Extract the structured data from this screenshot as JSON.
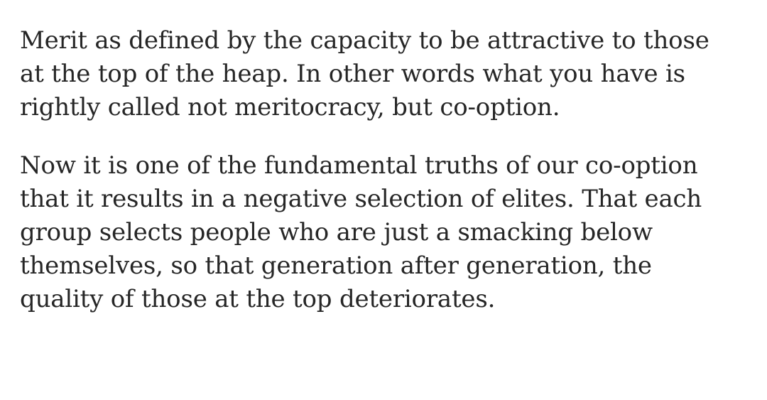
{
  "article": {
    "paragraphs": [
      {
        "lines": [
          "Merit as defined by the capacity to be attractive to those",
          "at the top of the heap. In other words what you have is",
          "rightly called not meritocracy, but co-option."
        ]
      },
      {
        "lines": [
          "Now it is one of the fundamental truths of our co-option",
          "that it results in a negative selection of elites. That each",
          "group selects people who are just a smacking below",
          "themselves, so that generation after generation, the",
          "quality of those at the top deteriorates."
        ]
      }
    ]
  }
}
